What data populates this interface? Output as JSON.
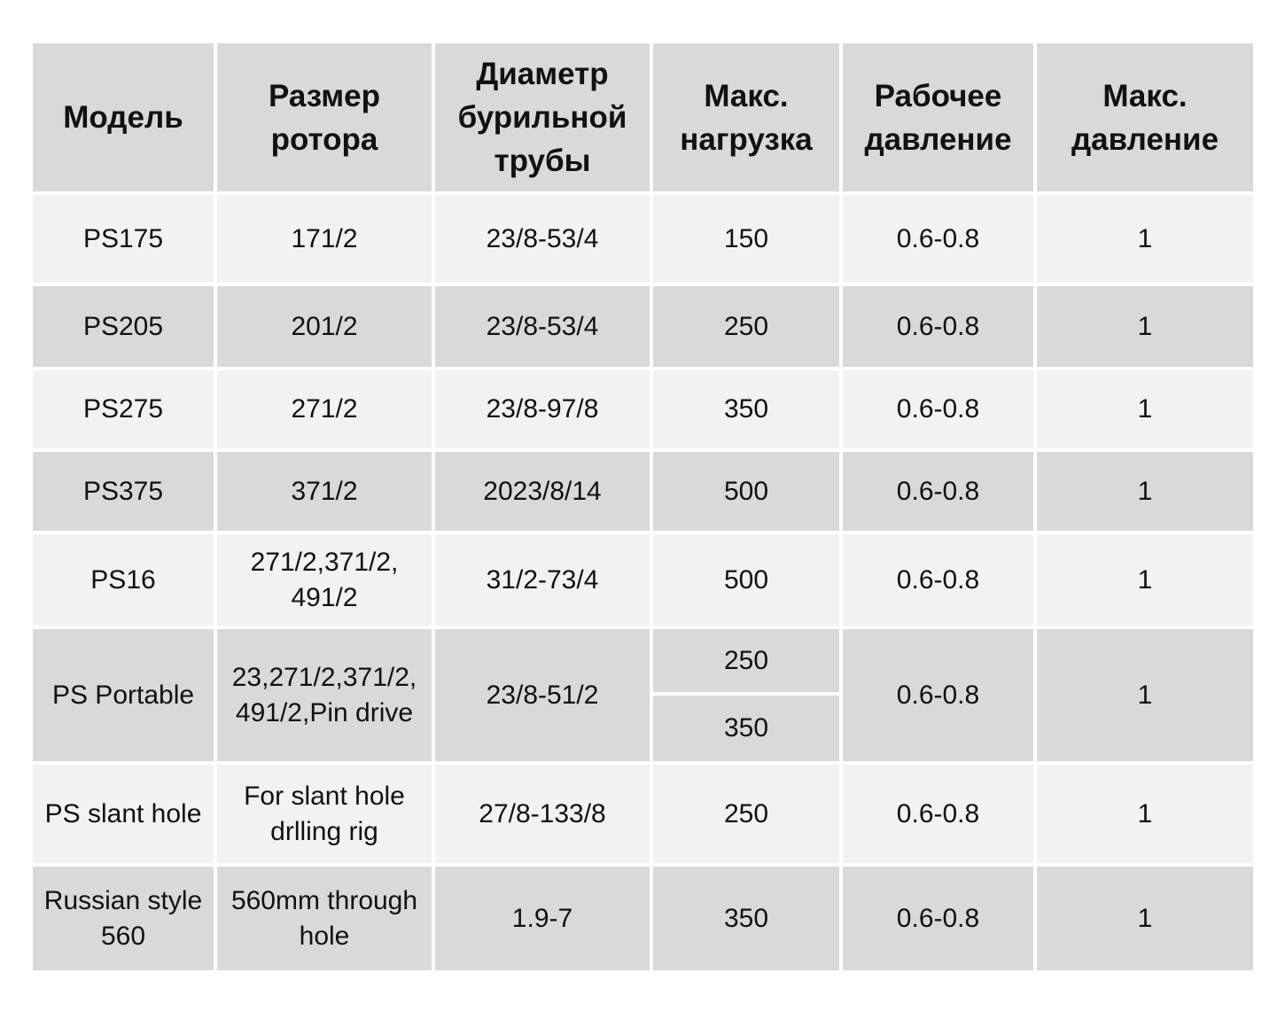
{
  "headers": [
    "Модель",
    "Размер\nротора",
    "Диаметр\nбурильной\nтрубы",
    "Макс.\nнагрузка",
    "Рабочее\nдавление",
    "Макс.\nдавление"
  ],
  "rows": [
    {
      "model": "PS175",
      "rotor": "171/2",
      "pipe": "23/8-53/4",
      "load": "150",
      "work": "0.6-0.8",
      "max": "1"
    },
    {
      "model": "PS205",
      "rotor": "201/2",
      "pipe": "23/8-53/4",
      "load": "250",
      "work": "0.6-0.8",
      "max": "1"
    },
    {
      "model": "PS275",
      "rotor": "271/2",
      "pipe": "23/8-97/8",
      "load": "350",
      "work": "0.6-0.8",
      "max": "1"
    },
    {
      "model": "PS375",
      "rotor": "371/2",
      "pipe": "2023/8/14",
      "load": "500",
      "work": "0.6-0.8",
      "max": "1"
    },
    {
      "model": "PS16",
      "rotor": "271/2,371/2,\n491/2",
      "pipe": "31/2-73/4",
      "load": "500",
      "work": "0.6-0.8",
      "max": "1"
    },
    {
      "model": "PS Portable",
      "rotor": "23,271/2,371/2,\n491/2,Pin drive",
      "pipe": "23/8-51/2",
      "load": "250",
      "load2": "350",
      "work": "0.6-0.8",
      "max": "1"
    },
    {
      "model": "PS slant hole",
      "rotor": "For slant hole\ndrlling rig",
      "pipe": "27/8-133/8",
      "load": "250",
      "work": "0.6-0.8",
      "max": "1"
    },
    {
      "model": "Russian style\n560",
      "rotor": "560mm through\nhole",
      "pipe": "1.9-7",
      "load": "350",
      "work": "0.6-0.8",
      "max": "1"
    }
  ]
}
